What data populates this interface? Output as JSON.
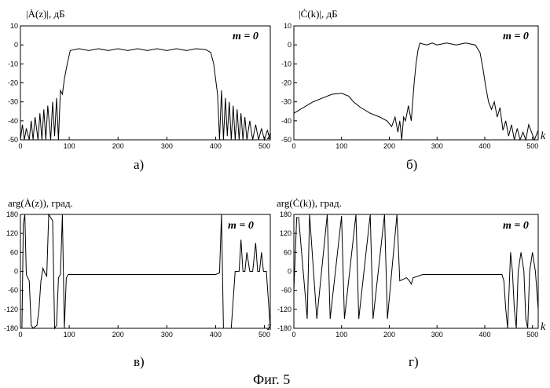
{
  "figure_caption": "Фиг. 5",
  "chart_data": [
    {
      "type": "line",
      "panel": "а)",
      "ylabel": "|Ȧ(z)|, дБ",
      "xlabel": "z",
      "annotation": "m = 0",
      "xlim": [
        0,
        512
      ],
      "ylim": [
        -50,
        10
      ],
      "xticks": [
        0,
        100,
        200,
        300,
        400,
        500
      ],
      "yticks": [
        10,
        0,
        -10,
        -20,
        -30,
        -40,
        -50
      ],
      "grid": false,
      "x": [
        0,
        4,
        8,
        12,
        18,
        22,
        26,
        30,
        36,
        40,
        44,
        48,
        52,
        56,
        62,
        66,
        70,
        74,
        78,
        82,
        86,
        90,
        96,
        102,
        110,
        120,
        140,
        160,
        180,
        200,
        220,
        240,
        260,
        280,
        300,
        320,
        340,
        360,
        380,
        390,
        396,
        400,
        404,
        408,
        412,
        416,
        420,
        424,
        428,
        432,
        436,
        440,
        444,
        448,
        452,
        456,
        460,
        464,
        470,
        476,
        482,
        488,
        494,
        500,
        506,
        512
      ],
      "values": [
        -50,
        -42,
        -50,
        -44,
        -50,
        -40,
        -50,
        -38,
        -50,
        -36,
        -50,
        -34,
        -50,
        -32,
        -50,
        -30,
        -48,
        -28,
        -50,
        -24,
        -26,
        -18,
        -10,
        -3,
        -2.5,
        -2,
        -3,
        -2,
        -3,
        -2,
        -3,
        -2,
        -3,
        -2,
        -3,
        -2,
        -3,
        -2,
        -2.5,
        -4,
        -10,
        -18,
        -26,
        -50,
        -24,
        -50,
        -28,
        -48,
        -30,
        -50,
        -32,
        -50,
        -34,
        -50,
        -36,
        -50,
        -38,
        -50,
        -40,
        -50,
        -42,
        -50,
        -44,
        -50,
        -45,
        -50
      ]
    },
    {
      "type": "line",
      "panel": "б)",
      "ylabel": "|Ċ(k)|, дБ",
      "xlabel": "k",
      "annotation": "m = 0",
      "xlim": [
        0,
        512
      ],
      "ylim": [
        -50,
        10
      ],
      "xticks": [
        0,
        100,
        200,
        300,
        400,
        500
      ],
      "yticks": [
        10,
        0,
        -10,
        -20,
        -30,
        -40,
        -50
      ],
      "grid": false,
      "x": [
        0,
        20,
        40,
        60,
        80,
        100,
        115,
        125,
        140,
        160,
        180,
        195,
        205,
        212,
        218,
        222,
        226,
        230,
        234,
        240,
        246,
        252,
        256,
        260,
        264,
        270,
        278,
        290,
        300,
        320,
        340,
        360,
        380,
        390,
        396,
        402,
        408,
        414,
        420,
        426,
        432,
        438,
        444,
        450,
        456,
        462,
        468,
        474,
        480,
        486,
        492,
        498,
        504,
        512
      ],
      "values": [
        -36,
        -33,
        -30,
        -28,
        -26,
        -25.5,
        -27,
        -30,
        -33,
        -36,
        -38,
        -40,
        -43,
        -38,
        -46,
        -40,
        -50,
        -38,
        -40,
        -32,
        -40,
        -20,
        -10,
        -3,
        1,
        0.5,
        0,
        1,
        0,
        1,
        0,
        1,
        0,
        -4,
        -12,
        -22,
        -30,
        -34,
        -30,
        -38,
        -33,
        -45,
        -40,
        -48,
        -42,
        -50,
        -44,
        -50,
        -46,
        -50,
        -42,
        -46,
        -50,
        -45
      ]
    },
    {
      "type": "line",
      "panel": "в)",
      "ylabel": "arg(Ȧ(z)), град.",
      "xlabel": "z",
      "annotation": "m = 0",
      "xlim": [
        0,
        512
      ],
      "ylim": [
        -180,
        180
      ],
      "xticks": [
        0,
        100,
        200,
        300,
        400,
        500
      ],
      "yticks": [
        180,
        120,
        60,
        0,
        -60,
        -120,
        -180
      ],
      "grid": false,
      "x": [
        0,
        3,
        6,
        9,
        12,
        18,
        22,
        26,
        30,
        34,
        38,
        42,
        46,
        50,
        54,
        58,
        62,
        66,
        70,
        74,
        78,
        82,
        86,
        90,
        94,
        98,
        110,
        150,
        200,
        250,
        300,
        350,
        400,
        408,
        412,
        416,
        420,
        424,
        432,
        440,
        448,
        452,
        456,
        460,
        464,
        470,
        476,
        482,
        486,
        490,
        494,
        498,
        504,
        512
      ],
      "values": [
        -180,
        -180,
        150,
        180,
        -10,
        -30,
        -170,
        -180,
        -175,
        -170,
        -120,
        -30,
        10,
        -5,
        -15,
        180,
        170,
        160,
        -180,
        -170,
        -20,
        -10,
        180,
        -180,
        -20,
        -10,
        -10,
        -10,
        -10,
        -10,
        -10,
        -10,
        -10,
        -5,
        180,
        -180,
        -180,
        -180,
        -180,
        0,
        0,
        100,
        0,
        0,
        60,
        0,
        0,
        90,
        0,
        0,
        60,
        0,
        0,
        -180
      ]
    },
    {
      "type": "line",
      "panel": "г)",
      "ylabel": "arg(Ċ(k)), град.",
      "xlabel": "k",
      "annotation": "m = 0",
      "xlim": [
        0,
        512
      ],
      "ylim": [
        -180,
        180
      ],
      "xticks": [
        0,
        100,
        200,
        300,
        400,
        500
      ],
      "yticks": [
        180,
        120,
        60,
        0,
        -60,
        -120,
        -180
      ],
      "grid": false,
      "x": [
        0,
        6,
        10,
        28,
        33,
        48,
        70,
        76,
        100,
        106,
        130,
        136,
        160,
        166,
        190,
        196,
        216,
        222,
        236,
        242,
        246,
        250,
        270,
        300,
        340,
        380,
        420,
        436,
        440,
        444,
        448,
        454,
        458,
        462,
        466,
        470,
        476,
        482,
        486,
        490,
        494,
        500,
        506,
        512
      ],
      "values": [
        -60,
        170,
        170,
        -150,
        180,
        -150,
        180,
        -150,
        175,
        -150,
        180,
        -150,
        180,
        -150,
        180,
        -150,
        180,
        -30,
        -20,
        -30,
        -40,
        -20,
        -10,
        -10,
        -10,
        -10,
        -10,
        -10,
        -30,
        -120,
        -180,
        60,
        0,
        -120,
        -180,
        0,
        60,
        0,
        -150,
        -180,
        0,
        60,
        0,
        -120
      ]
    }
  ]
}
